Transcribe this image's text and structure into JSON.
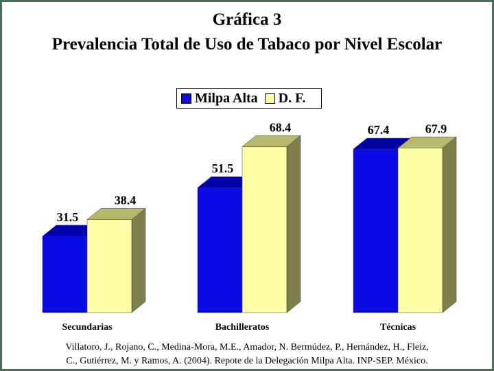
{
  "title_line1": "Gráfica 3",
  "title_line2": "Prevalencia Total de Uso de Tabaco por Nivel Escolar",
  "colors": {
    "milpa_front": "#0b0be6",
    "milpa_top": "#0000a8",
    "milpa_side": "#00007a",
    "df_front": "#ffffa8",
    "df_top": "#b8b86e",
    "df_side": "#7f7f4c",
    "frame": "#4a6a55"
  },
  "credit_line1": "Villatoro, J., Rojano, C., Medina-Mora, M.E., Amador, N. Bermúdez, P., Hernández, H., Fleiz,",
  "credit_line2": "C., Gutiérrez, M. y Ramos, A. (2004). Repote de la Delegación Milpa Alta. INP-SEP. México.",
  "chart_data": {
    "type": "bar",
    "title": "Prevalencia Total de Uso de Tabaco por Nivel Escolar",
    "categories": [
      "Secundarias",
      "Bachilleratos",
      "Técnicas"
    ],
    "series": [
      {
        "name": "Milpa Alta",
        "values": [
          31.5,
          51.5,
          67.4
        ]
      },
      {
        "name": "D. F.",
        "values": [
          38.4,
          68.4,
          67.9
        ]
      }
    ],
    "ylim": [
      0,
      80
    ],
    "grid": false,
    "legend": "top-center",
    "three_d": true
  }
}
